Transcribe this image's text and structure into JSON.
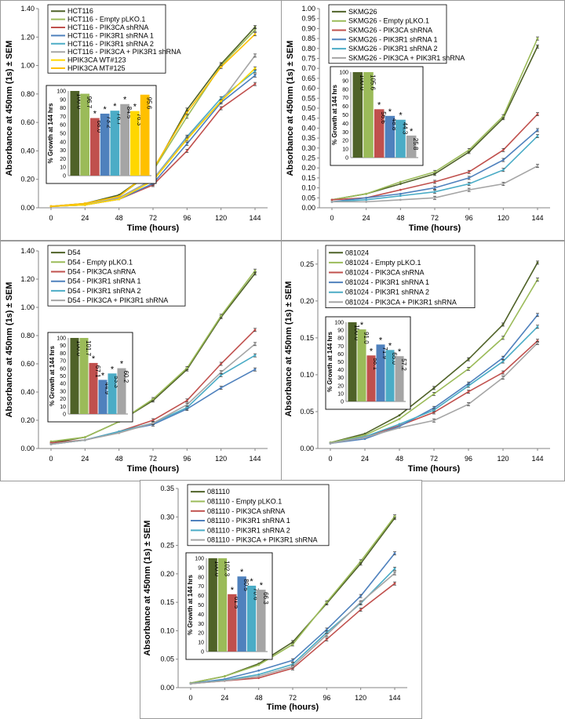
{
  "chart_data": [
    {
      "type": "line",
      "panel": "HCT116",
      "xlabel": "Time (hours)",
      "ylabel": "Absorbance at 450nm (1s) ± SEM",
      "x": [
        0,
        24,
        48,
        72,
        96,
        120,
        144
      ],
      "ylim": [
        0,
        1.4
      ],
      "yticks": [
        "0.00",
        "0.20",
        "0.40",
        "0.60",
        "0.80",
        "1.00",
        "1.20",
        "1.40"
      ],
      "series": [
        {
          "name": "HCT116",
          "color": "#4f6228",
          "values": [
            0.01,
            0.03,
            0.09,
            0.26,
            0.69,
            1.01,
            1.27
          ]
        },
        {
          "name": "HCT116 - Empty pLKO.1",
          "color": "#9bbb59",
          "values": [
            0.01,
            0.03,
            0.08,
            0.26,
            0.64,
            1.0,
            1.25
          ]
        },
        {
          "name": "HCT116 - PIK3CA shRNA",
          "color": "#c0504d",
          "values": [
            0.01,
            0.02,
            0.06,
            0.16,
            0.4,
            0.7,
            0.87
          ]
        },
        {
          "name": "HCT116 - PIK3R1 shRNA 1",
          "color": "#4f81bd",
          "values": [
            0.01,
            0.02,
            0.06,
            0.17,
            0.45,
            0.74,
            0.93
          ]
        },
        {
          "name": "HCT116 - PIK3R1 shRNA 2",
          "color": "#4bacc6",
          "values": [
            0.01,
            0.02,
            0.07,
            0.2,
            0.5,
            0.77,
            0.96
          ]
        },
        {
          "name": "HCT116 - PIK3CA + PIK3R1 shRNA",
          "color": "#a5a5a5",
          "values": [
            0.01,
            0.02,
            0.07,
            0.2,
            0.49,
            0.75,
            1.07
          ]
        },
        {
          "name": "HPIK3CA WT#123",
          "color": "#ffd700",
          "values": [
            0.01,
            0.02,
            0.06,
            0.19,
            0.48,
            0.75,
            0.98
          ]
        },
        {
          "name": "HPIK3CA MT#125",
          "color": "#ffc000",
          "values": [
            0.01,
            0.03,
            0.08,
            0.27,
            0.67,
            0.99,
            1.22
          ]
        }
      ],
      "inset": {
        "title": "% Growth at 144 hrs",
        "ylim": [
          0,
          100
        ],
        "yticks": [
          "0",
          "10",
          "20",
          "30",
          "40",
          "50",
          "60",
          "70",
          "80",
          "90",
          "100"
        ],
        "values": [
          100.0,
          96.7,
          68.0,
          73.2,
          76.7,
          84.5,
          76.3,
          95.6
        ],
        "labels": [
          "100.0",
          "96.7",
          "68.0",
          "73.2",
          "76.7",
          "84.5",
          "76.3",
          "95.6"
        ],
        "significant": [
          false,
          false,
          true,
          true,
          true,
          true,
          true,
          false
        ]
      }
    },
    {
      "type": "line",
      "panel": "SKMG26",
      "xlabel": "Time (hours)",
      "ylabel": "Absorbance at 450nm (1s) ± SEM",
      "x": [
        0,
        24,
        48,
        72,
        96,
        120,
        144
      ],
      "ylim": [
        0,
        1.0
      ],
      "yticks": [
        "0.00",
        "0.05",
        "0.10",
        "0.15",
        "0.20",
        "0.25",
        "0.30",
        "0.35",
        "0.40",
        "0.45",
        "0.50",
        "0.55",
        "0.60",
        "0.65",
        "0.70",
        "0.75",
        "0.80",
        "0.85",
        "0.90",
        "0.95",
        "1.00"
      ],
      "series": [
        {
          "name": "SKMG26",
          "color": "#4f6228",
          "values": [
            0.04,
            0.07,
            0.12,
            0.17,
            0.28,
            0.45,
            0.81
          ]
        },
        {
          "name": "SKMG26 - Empty pLKO.1",
          "color": "#9bbb59",
          "values": [
            0.04,
            0.07,
            0.13,
            0.18,
            0.29,
            0.46,
            0.85
          ]
        },
        {
          "name": "SKMG26 - PIK3CA shRNA",
          "color": "#c0504d",
          "values": [
            0.04,
            0.05,
            0.09,
            0.13,
            0.18,
            0.29,
            0.47
          ]
        },
        {
          "name": "SKMG26 - PIK3R1 shRNA 1",
          "color": "#4f81bd",
          "values": [
            0.03,
            0.05,
            0.07,
            0.1,
            0.15,
            0.24,
            0.39
          ]
        },
        {
          "name": "SKMG26 - PIK3R1 shRNA 2",
          "color": "#4bacc6",
          "values": [
            0.03,
            0.04,
            0.06,
            0.08,
            0.12,
            0.19,
            0.36
          ]
        },
        {
          "name": "SKMG26 - PIK3CA + PIK3R1 shRNA",
          "color": "#a5a5a5",
          "values": [
            0.03,
            0.03,
            0.04,
            0.05,
            0.09,
            0.12,
            0.21
          ]
        }
      ],
      "inset": {
        "title": "% Growth at 144 hrs",
        "ylim": [
          0,
          100
        ],
        "yticks": [
          "0",
          "10",
          "20",
          "30",
          "40",
          "50",
          "60",
          "70",
          "80",
          "90",
          "100"
        ],
        "values": [
          100.0,
          105.6,
          56.6,
          48.8,
          44.3,
          25.8
        ],
        "labels": [
          "100.0",
          "105.6",
          "56.6",
          "48.8",
          "44.3",
          "25.8"
        ],
        "significant": [
          false,
          false,
          true,
          true,
          true,
          true
        ]
      }
    },
    {
      "type": "line",
      "panel": "D54",
      "xlabel": "Time (hours)",
      "ylabel": "Absorbance at 450nm (1s) ± SEM",
      "x": [
        0,
        24,
        48,
        72,
        96,
        120,
        144
      ],
      "ylim": [
        0,
        1.4
      ],
      "yticks": [
        "0.00",
        "0.20",
        "0.40",
        "0.60",
        "0.80",
        "1.00",
        "1.20",
        "1.40"
      ],
      "series": [
        {
          "name": "D54",
          "color": "#4f6228",
          "values": [
            0.04,
            0.08,
            0.19,
            0.34,
            0.56,
            0.93,
            1.24
          ]
        },
        {
          "name": "D54 - Empty pLKO.1",
          "color": "#9bbb59",
          "values": [
            0.05,
            0.08,
            0.19,
            0.35,
            0.57,
            0.94,
            1.26
          ]
        },
        {
          "name": "D54 - PIK3CA shRNA",
          "color": "#c0504d",
          "values": [
            0.04,
            0.06,
            0.12,
            0.2,
            0.34,
            0.6,
            0.84
          ]
        },
        {
          "name": "D54 - PIK3R1 shRNA 1",
          "color": "#4f81bd",
          "values": [
            0.03,
            0.06,
            0.12,
            0.17,
            0.28,
            0.43,
            0.56
          ]
        },
        {
          "name": "D54 - PIK3R1 shRNA 2",
          "color": "#4bacc6",
          "values": [
            0.03,
            0.06,
            0.12,
            0.18,
            0.29,
            0.52,
            0.66
          ]
        },
        {
          "name": "D54 - PIK3CA + PIK3R1 shRNA",
          "color": "#a5a5a5",
          "values": [
            0.03,
            0.06,
            0.11,
            0.18,
            0.31,
            0.54,
            0.74
          ]
        }
      ],
      "inset": {
        "title": "% Growth at 144 hrs",
        "ylim": [
          0,
          100
        ],
        "yticks": [
          "0",
          "10",
          "20",
          "30",
          "40",
          "50",
          "60",
          "70",
          "80",
          "90",
          "100"
        ],
        "values": [
          100.0,
          101.7,
          67.1,
          44.9,
          53.3,
          60.2
        ],
        "labels": [
          "100.0",
          "101.7",
          "67.1",
          "44.9",
          "53.3",
          "60.2"
        ],
        "significant": [
          false,
          false,
          true,
          true,
          true,
          true
        ]
      }
    },
    {
      "type": "line",
      "panel": "081024",
      "xlabel": "Time (hours)",
      "ylabel": "Absorbance at 450nm (1s) ± SEM",
      "x": [
        0,
        24,
        48,
        72,
        96,
        120,
        144
      ],
      "ylim": [
        0,
        0.27
      ],
      "yticks": [
        "0.00",
        "0.05",
        "0.10",
        "0.15",
        "0.20",
        "0.25"
      ],
      "series": [
        {
          "name": "081024",
          "color": "#4f6228",
          "values": [
            0.008,
            0.02,
            0.045,
            0.082,
            0.121,
            0.168,
            0.252
          ]
        },
        {
          "name": "081024 - Empty pLKO.1",
          "color": "#9bbb59",
          "values": [
            0.008,
            0.018,
            0.04,
            0.074,
            0.108,
            0.15,
            0.229
          ]
        },
        {
          "name": "081024 - PIK3CA shRNA",
          "color": "#c0504d",
          "values": [
            0.007,
            0.016,
            0.031,
            0.049,
            0.077,
            0.103,
            0.146
          ]
        },
        {
          "name": "081024 - PIK3R1 shRNA 1",
          "color": "#4f81bd",
          "values": [
            0.007,
            0.013,
            0.03,
            0.055,
            0.088,
            0.123,
            0.181
          ]
        },
        {
          "name": "081024 - PIK3R1 shRNA 2",
          "color": "#4bacc6",
          "values": [
            0.007,
            0.016,
            0.033,
            0.052,
            0.085,
            0.118,
            0.165
          ]
        },
        {
          "name": "081024 - PIK3CA + PIK3R1 shRNA",
          "color": "#a5a5a5",
          "values": [
            0.007,
            0.015,
            0.028,
            0.038,
            0.06,
            0.096,
            0.143
          ]
        }
      ],
      "inset": {
        "title": "% Growth at 144 hrs",
        "ylim": [
          0,
          100
        ],
        "yticks": [
          "0",
          "10",
          "20",
          "30",
          "40",
          "50",
          "60",
          "70",
          "80",
          "90",
          "100"
        ],
        "values": [
          100.0,
          91.0,
          58.1,
          71.9,
          65.0,
          57.2
        ],
        "labels": [
          "100.0",
          "91.0",
          "58.1",
          "71.9",
          "65.0",
          "57.2"
        ],
        "significant": [
          false,
          true,
          true,
          true,
          true,
          true
        ]
      }
    },
    {
      "type": "line",
      "panel": "081110",
      "xlabel": "Time (hours)",
      "ylabel": "Absorbance at 450nm (1s) ± SEM",
      "x": [
        0,
        24,
        48,
        72,
        96,
        120,
        144
      ],
      "ylim": [
        0,
        0.35
      ],
      "yticks": [
        "0.00",
        "0.05",
        "0.10",
        "0.15",
        "0.20",
        "0.25",
        "0.30",
        "0.35"
      ],
      "series": [
        {
          "name": "081110",
          "color": "#4f6228",
          "values": [
            0.008,
            0.02,
            0.042,
            0.08,
            0.148,
            0.218,
            0.298
          ]
        },
        {
          "name": "081110 - Empty pLKO.1",
          "color": "#9bbb59",
          "values": [
            0.008,
            0.02,
            0.04,
            0.076,
            0.15,
            0.222,
            0.301
          ]
        },
        {
          "name": "081110 - PIK3CA shRNA",
          "color": "#c0504d",
          "values": [
            0.007,
            0.012,
            0.017,
            0.034,
            0.085,
            0.137,
            0.183
          ]
        },
        {
          "name": "081110 - PIK3R1 shRNA 1",
          "color": "#4f81bd",
          "values": [
            0.007,
            0.015,
            0.03,
            0.048,
            0.102,
            0.161,
            0.236
          ]
        },
        {
          "name": "081110 - PIK3R1 shRNA 2",
          "color": "#4bacc6",
          "values": [
            0.007,
            0.013,
            0.023,
            0.041,
            0.097,
            0.148,
            0.209
          ]
        },
        {
          "name": "081110 - PIK3CA + PIK3R1 shRNA",
          "color": "#a5a5a5",
          "values": [
            0.007,
            0.012,
            0.02,
            0.037,
            0.093,
            0.15,
            0.201
          ]
        }
      ],
      "inset": {
        "title": "% Growth at 144 hrs",
        "ylim": [
          0,
          100
        ],
        "yticks": [
          "0",
          "10",
          "20",
          "30",
          "40",
          "50",
          "60",
          "70",
          "80",
          "90",
          "100"
        ],
        "values": [
          100.0,
          102.3,
          61.5,
          80.5,
          70.6,
          66.3
        ],
        "labels": [
          "100.0",
          "102.3",
          "61.5",
          "80.5",
          "70.6",
          "66.3"
        ],
        "significant": [
          false,
          false,
          true,
          true,
          true,
          true
        ]
      }
    }
  ]
}
